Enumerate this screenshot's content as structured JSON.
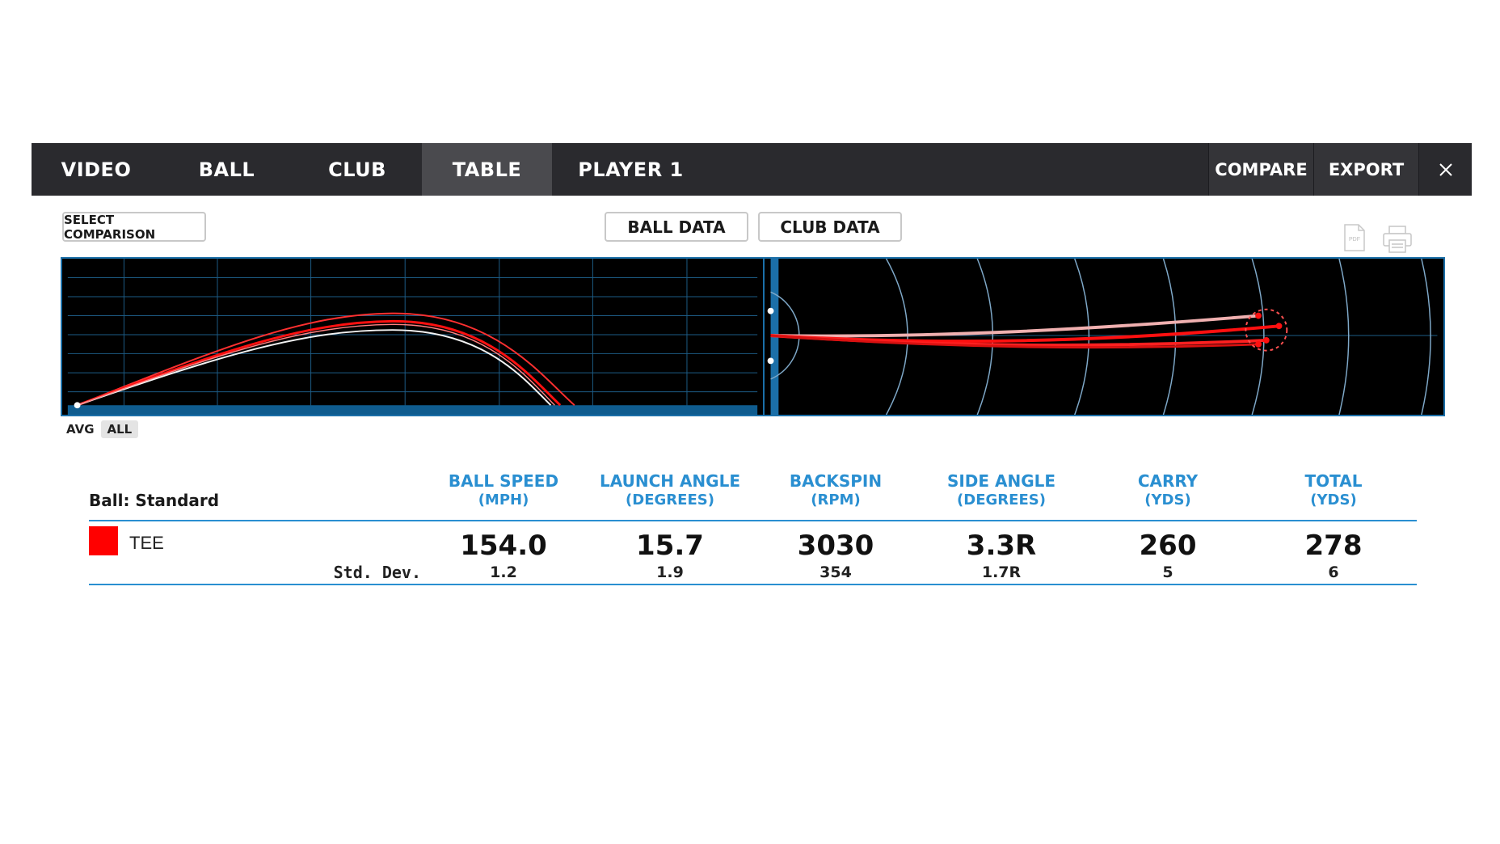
{
  "nav": {
    "tabs": [
      {
        "label": "VIDEO"
      },
      {
        "label": "BALL"
      },
      {
        "label": "CLUB"
      },
      {
        "label": "TABLE",
        "active": true
      },
      {
        "label": "PLAYER 1"
      }
    ],
    "compare_label": "COMPARE",
    "export_label": "EXPORT",
    "close_icon": "close-icon"
  },
  "toolbar": {
    "select_comparison_label": "SELECT COMPARISON",
    "ball_data_label": "BALL DATA",
    "club_data_label": "CLUB DATA",
    "pdf_icon_text": "PDF",
    "icons": [
      "pdf-icon",
      "printer-icon"
    ]
  },
  "chart_toggle": {
    "avg_label": "AVG",
    "all_label": "ALL",
    "selected": "ALL"
  },
  "colors": {
    "accent_blue": "#2a8fd1",
    "shot_red": "#ff0000",
    "nav_bg": "#2a2a2e"
  },
  "table": {
    "ball_label": "Ball: Standard",
    "columns": [
      {
        "name": "BALL SPEED",
        "unit": "(MPH)"
      },
      {
        "name": "LAUNCH ANGLE",
        "unit": "(DEGREES)"
      },
      {
        "name": "BACKSPIN",
        "unit": "(RPM)"
      },
      {
        "name": "SIDE ANGLE",
        "unit": "(DEGREES)"
      },
      {
        "name": "CARRY",
        "unit": "(YDS)"
      },
      {
        "name": "TOTAL",
        "unit": "(YDS)"
      }
    ],
    "row": {
      "label": "TEE",
      "values": [
        "154.0",
        "15.7",
        "3030",
        "3.3R",
        "260",
        "278"
      ]
    },
    "stddev_label": "Std. Dev.",
    "stddev_values": [
      "1.2",
      "1.9",
      "354",
      "1.7R",
      "5",
      "6"
    ]
  }
}
